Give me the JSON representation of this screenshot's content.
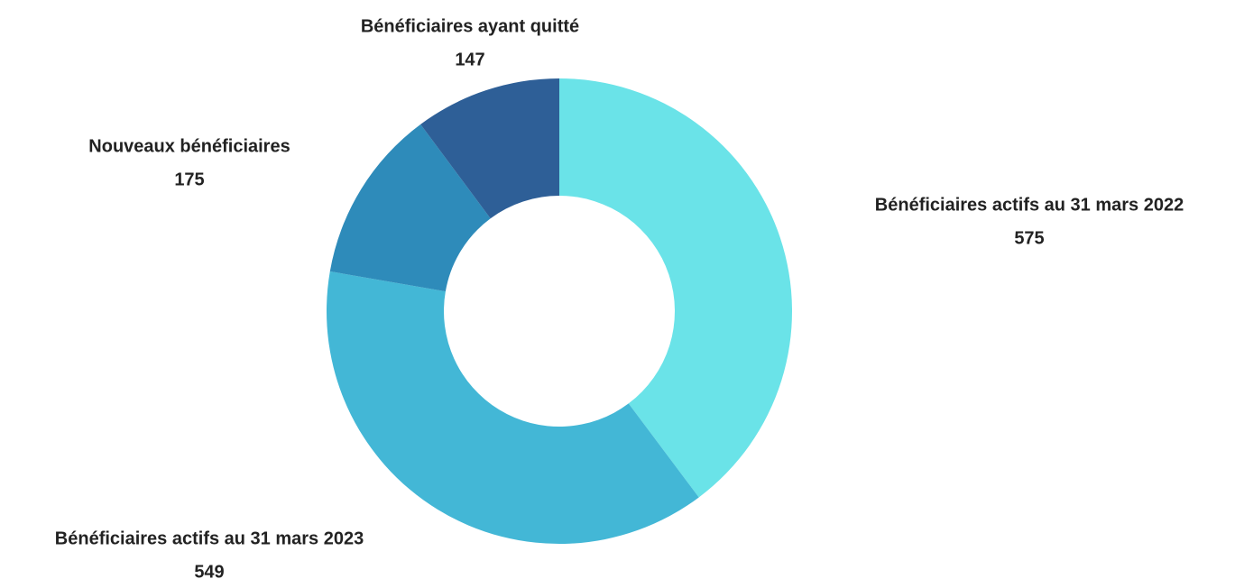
{
  "chart_data": {
    "type": "donut",
    "categories": [
      "Bénéficiaires actifs au 31 mars 2022",
      "Bénéficiaires actifs au 31 mars 2023",
      "Nouveaux bénéficiaires",
      "Bénéficiaires ayant quitté"
    ],
    "values": [
      575,
      549,
      175,
      147
    ],
    "colors": [
      "#6ae3e8",
      "#43b7d6",
      "#2e8bba",
      "#2e5f97"
    ]
  }
}
